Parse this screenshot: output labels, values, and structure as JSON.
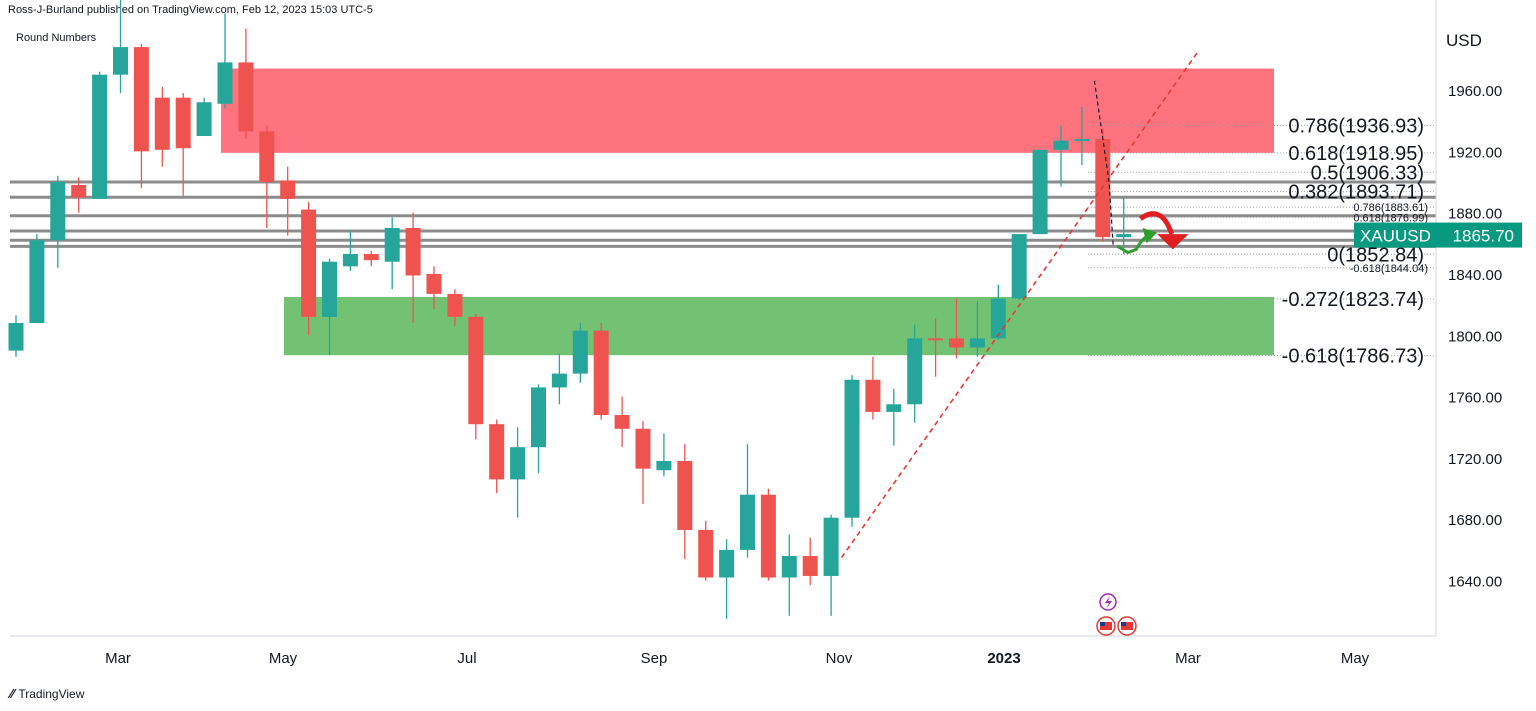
{
  "header": {
    "published_by": "Ross-J-Burland published on TradingView.com, Feb 12, 2023 15:03 UTC-5"
  },
  "chart_label": "Round Numbers",
  "footer": {
    "logo_text": "TradingView"
  },
  "chart_data": {
    "type": "candlestick",
    "currency_label": "USD",
    "y_ticks": [
      1960,
      1920,
      1880,
      1840,
      1800,
      1760,
      1720,
      1680,
      1640
    ],
    "y_tick_labels": [
      "1960.00",
      "1920.00",
      "1880.00",
      "1840.00",
      "1800.00",
      "1760.00",
      "1720.00",
      "1680.00",
      "1640.00"
    ],
    "x_labels": [
      "Mar",
      "May",
      "Jul",
      "Sep",
      "Nov",
      "2023",
      "Mar",
      "May"
    ],
    "symbol": "XAUUSD",
    "last_price": "1865.70",
    "colors": {
      "up": "#26a69a",
      "down": "#ef5350",
      "resistance_zone": "#ff6b78",
      "support_zone": "#6bbf6b",
      "hline": "#8c8c8c",
      "trend": "#e53935",
      "tag_bg": "#089981"
    },
    "candles": [
      {
        "o": 1790,
        "c": 1808,
        "h": 1813,
        "l": 1786
      },
      {
        "o": 1808,
        "c": 1862,
        "h": 1866,
        "l": 1808
      },
      {
        "o": 1862,
        "c": 1900,
        "h": 1904,
        "l": 1844
      },
      {
        "o": 1898,
        "c": 1890,
        "h": 1903,
        "l": 1880
      },
      {
        "o": 1889,
        "c": 1970,
        "h": 1972,
        "l": 1889
      },
      {
        "o": 1970,
        "c": 1988,
        "h": 2070,
        "l": 1958
      },
      {
        "o": 1988,
        "c": 1920,
        "h": 1990,
        "l": 1896
      },
      {
        "o": 1955,
        "c": 1921,
        "h": 1962,
        "l": 1910
      },
      {
        "o": 1955,
        "c": 1922,
        "h": 1958,
        "l": 1891
      },
      {
        "o": 1930,
        "c": 1952,
        "h": 1955,
        "l": 1930
      },
      {
        "o": 1951,
        "c": 1978,
        "h": 2010,
        "l": 1948
      },
      {
        "o": 1978,
        "c": 1933,
        "h": 2000,
        "l": 1928
      },
      {
        "o": 1933,
        "c": 1900,
        "h": 1937,
        "l": 1870
      },
      {
        "o": 1901,
        "c": 1889,
        "h": 1910,
        "l": 1865
      },
      {
        "o": 1882,
        "c": 1812,
        "h": 1887,
        "l": 1800
      },
      {
        "o": 1812,
        "c": 1848,
        "h": 1850,
        "l": 1787
      },
      {
        "o": 1845,
        "c": 1853,
        "h": 1868,
        "l": 1842
      },
      {
        "o": 1853,
        "c": 1849,
        "h": 1855,
        "l": 1845
      },
      {
        "o": 1848,
        "c": 1870,
        "h": 1877,
        "l": 1830
      },
      {
        "o": 1870,
        "c": 1839,
        "h": 1880,
        "l": 1808
      },
      {
        "o": 1840,
        "c": 1827,
        "h": 1845,
        "l": 1817
      },
      {
        "o": 1827,
        "c": 1812,
        "h": 1830,
        "l": 1806
      },
      {
        "o": 1812,
        "c": 1742,
        "h": 1814,
        "l": 1732
      },
      {
        "o": 1742,
        "c": 1706,
        "h": 1745,
        "l": 1697
      },
      {
        "o": 1706,
        "c": 1727,
        "h": 1740,
        "l": 1681
      },
      {
        "o": 1727,
        "c": 1766,
        "h": 1768,
        "l": 1710
      },
      {
        "o": 1766,
        "c": 1775,
        "h": 1788,
        "l": 1755
      },
      {
        "o": 1775,
        "c": 1803,
        "h": 1808,
        "l": 1769
      },
      {
        "o": 1803,
        "c": 1748,
        "h": 1808,
        "l": 1745
      },
      {
        "o": 1748,
        "c": 1739,
        "h": 1760,
        "l": 1727
      },
      {
        "o": 1739,
        "c": 1713,
        "h": 1744,
        "l": 1690
      },
      {
        "o": 1712,
        "c": 1718,
        "h": 1736,
        "l": 1708
      },
      {
        "o": 1718,
        "c": 1673,
        "h": 1729,
        "l": 1654
      },
      {
        "o": 1673,
        "c": 1642,
        "h": 1679,
        "l": 1640
      },
      {
        "o": 1642,
        "c": 1660,
        "h": 1667,
        "l": 1615
      },
      {
        "o": 1660,
        "c": 1696,
        "h": 1729,
        "l": 1655
      },
      {
        "o": 1696,
        "c": 1642,
        "h": 1700,
        "l": 1640
      },
      {
        "o": 1642,
        "c": 1656,
        "h": 1670,
        "l": 1617
      },
      {
        "o": 1656,
        "c": 1643,
        "h": 1668,
        "l": 1637
      },
      {
        "o": 1643,
        "c": 1681,
        "h": 1683,
        "l": 1617
      },
      {
        "o": 1681,
        "c": 1771,
        "h": 1774,
        "l": 1675
      },
      {
        "o": 1771,
        "c": 1750,
        "h": 1786,
        "l": 1745
      },
      {
        "o": 1750,
        "c": 1755,
        "h": 1765,
        "l": 1728
      },
      {
        "o": 1755,
        "c": 1798,
        "h": 1807,
        "l": 1743
      },
      {
        "o": 1798,
        "c": 1797,
        "h": 1811,
        "l": 1773
      },
      {
        "o": 1798,
        "c": 1792,
        "h": 1824,
        "l": 1785
      },
      {
        "o": 1792,
        "c": 1798,
        "h": 1822,
        "l": 1786
      },
      {
        "o": 1798,
        "c": 1824,
        "h": 1833,
        "l": 1797
      },
      {
        "o": 1824,
        "c": 1866,
        "h": 1866,
        "l": 1823
      },
      {
        "o": 1866,
        "c": 1921,
        "h": 1921,
        "l": 1866
      },
      {
        "o": 1921,
        "c": 1927,
        "h": 1937,
        "l": 1897
      },
      {
        "o": 1927,
        "c": 1928,
        "h": 1949,
        "l": 1911
      },
      {
        "o": 1928,
        "c": 1864,
        "h": 1935,
        "l": 1861
      },
      {
        "o": 1864,
        "c": 1866,
        "h": 1890,
        "l": 1853
      }
    ],
    "zones": [
      {
        "name": "resistance",
        "top": 1974,
        "bottom": 1919
      },
      {
        "name": "support",
        "top": 1825,
        "bottom": 1787
      }
    ],
    "horizontal_levels": [
      1900,
      1890,
      1878,
      1868,
      1862,
      1858
    ],
    "fib_main": [
      {
        "label": "0.786(1936.93)",
        "price": 1936.93
      },
      {
        "label": "0.618(1918.95)",
        "price": 1918.95
      },
      {
        "label": "0.5(1906.33)",
        "price": 1906.33
      },
      {
        "label": "0.382(1893.71)",
        "price": 1893.71
      },
      {
        "label": "0(1852.84)",
        "price": 1852.84
      },
      {
        "label": "-0.272(1823.74)",
        "price": 1823.74
      },
      {
        "label": "-0.618(1786.73)",
        "price": 1786.73
      }
    ],
    "fib_small": [
      {
        "label": "0.786(1883.61)",
        "price": 1883.61
      },
      {
        "label": "0.618(1876.99)",
        "price": 1876.99
      },
      {
        "label": "-0.618(1844.04)",
        "price": 1844.04
      }
    ],
    "trendline": {
      "from": {
        "index": 39.5,
        "price": 1655
      },
      "to": {
        "index": 56.5,
        "price": 1984
      }
    }
  }
}
